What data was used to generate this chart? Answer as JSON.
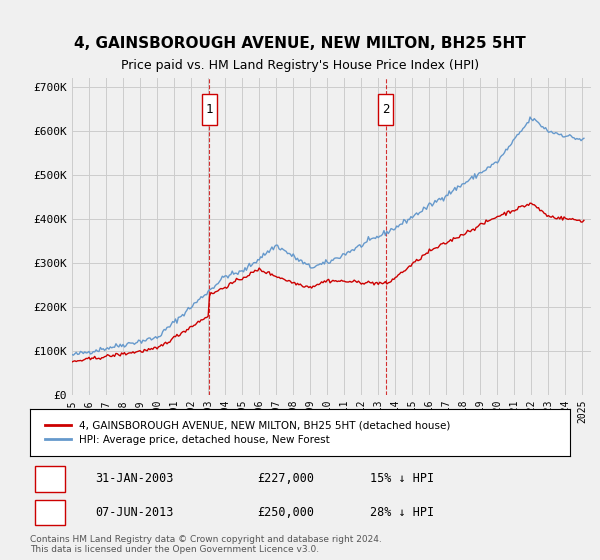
{
  "title": "4, GAINSBOROUGH AVENUE, NEW MILTON, BH25 5HT",
  "subtitle": "Price paid vs. HM Land Registry's House Price Index (HPI)",
  "legend_label1": "4, GAINSBOROUGH AVENUE, NEW MILTON, BH25 5HT (detached house)",
  "legend_label2": "HPI: Average price, detached house, New Forest",
  "transaction1_date": "31-JAN-2003",
  "transaction1_price": "£227,000",
  "transaction1_hpi": "15% ↓ HPI",
  "transaction2_date": "07-JUN-2013",
  "transaction2_price": "£250,000",
  "transaction2_hpi": "28% ↓ HPI",
  "transaction1_year": 2003.08,
  "transaction2_year": 2013.44,
  "hpi_color": "#6699cc",
  "price_color": "#cc0000",
  "vline_color": "#cc0000",
  "grid_color": "#cccccc",
  "background_color": "#f0f0f0",
  "footer": "Contains HM Land Registry data © Crown copyright and database right 2024.\nThis data is licensed under the Open Government Licence v3.0.",
  "ylim": [
    0,
    720000
  ],
  "yticks": [
    0,
    100000,
    200000,
    300000,
    400000,
    500000,
    600000,
    700000
  ],
  "ytick_labels": [
    "£0",
    "£100K",
    "£200K",
    "£300K",
    "£400K",
    "£500K",
    "£600K",
    "£700K"
  ]
}
